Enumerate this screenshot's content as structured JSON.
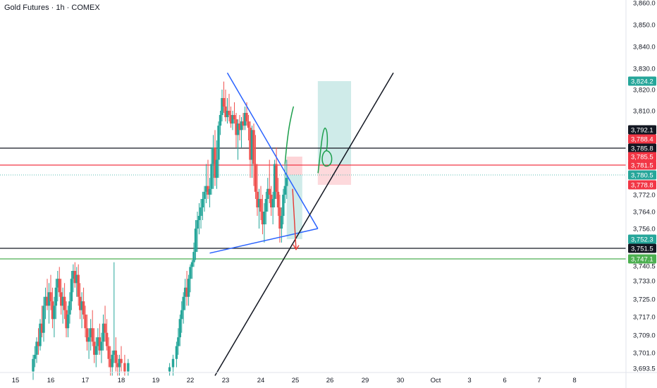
{
  "chart_data": {
    "type": "candlestick",
    "title": "Gold Futures · 1h · COMEX",
    "xlabel": "",
    "ylabel": "",
    "ylim": [
      3690,
      3865
    ],
    "grid": false,
    "colors": {
      "up": "#26a69a",
      "down": "#ef5350",
      "trendline": "#2962ff",
      "level": "#131722",
      "entry": "#f23645",
      "support": "#4caf50",
      "target_zone": "#26a69a",
      "stop_zone": "#f7525f"
    },
    "y_ticks": [
      "3,860.0",
      "3,850.0",
      "3,840.0",
      "3,830.0",
      "3,820.0",
      "3,810.0",
      "3,772.0",
      "3,764.0",
      "3,756.0",
      "3,740.5",
      "3,733.0",
      "3,725.0",
      "3,717.0",
      "3,709.0",
      "3,701.0",
      "3,693.5"
    ],
    "x_ticks": [
      "15",
      "16",
      "17",
      "18",
      "19",
      "22",
      "23",
      "24",
      "25",
      "26",
      "29",
      "30",
      "Oct",
      "3",
      "6",
      "7",
      "8"
    ],
    "price_labels": [
      {
        "text": "3,824.2",
        "value": 3824.2,
        "color": "#26a69a"
      },
      {
        "text": "3,792.1",
        "value": 3792.1,
        "color": "#131722"
      },
      {
        "text": "3,788.4",
        "value": 3788.4,
        "color": "#f23645"
      },
      {
        "text": "3,785.8",
        "value": 3785.8,
        "color": "#131722"
      },
      {
        "text": "3,785.5",
        "value": 3785.5,
        "color": "#f23645"
      },
      {
        "text": "3,781.5",
        "value": 3781.5,
        "color": "#f23645"
      },
      {
        "text": "3,780.5",
        "value": 3780.5,
        "color": "#26a69a"
      },
      {
        "text": "3,778.8",
        "value": 3778.8,
        "color": "#f23645"
      },
      {
        "text": "3,752.3",
        "value": 3752.3,
        "color": "#26a69a"
      },
      {
        "text": "3,751.5",
        "value": 3751.5,
        "color": "#131722"
      },
      {
        "text": "3,747.1",
        "value": 3747.1,
        "color": "#4caf50"
      }
    ],
    "horizontal_levels": [
      {
        "value": 3785.8,
        "color": "#131722"
      },
      {
        "value": 3781.5,
        "color": "#f23645"
      },
      {
        "value": 3751.5,
        "color": "#131722"
      },
      {
        "value": 3747.1,
        "color": "#4caf50"
      }
    ],
    "candles": [
      {
        "x": 0.5,
        "o": 3692,
        "h": 3700,
        "l": 3688,
        "c": 3698
      },
      {
        "x": 0.55,
        "o": 3698,
        "h": 3704,
        "l": 3694,
        "c": 3700
      },
      {
        "x": 0.6,
        "o": 3700,
        "h": 3708,
        "l": 3696,
        "c": 3706
      },
      {
        "x": 0.65,
        "o": 3706,
        "h": 3712,
        "l": 3700,
        "c": 3704
      },
      {
        "x": 0.7,
        "o": 3704,
        "h": 3716,
        "l": 3702,
        "c": 3714
      },
      {
        "x": 0.75,
        "o": 3714,
        "h": 3722,
        "l": 3708,
        "c": 3710
      },
      {
        "x": 0.8,
        "o": 3710,
        "h": 3726,
        "l": 3706,
        "c": 3722
      },
      {
        "x": 0.85,
        "o": 3722,
        "h": 3730,
        "l": 3716,
        "c": 3726
      },
      {
        "x": 0.9,
        "o": 3726,
        "h": 3734,
        "l": 3720,
        "c": 3722
      },
      {
        "x": 0.95,
        "o": 3722,
        "h": 3732,
        "l": 3714,
        "c": 3728
      },
      {
        "x": 1.0,
        "o": 3728,
        "h": 3736,
        "l": 3720,
        "c": 3724
      },
      {
        "x": 1.05,
        "o": 3724,
        "h": 3730,
        "l": 3712,
        "c": 3716
      },
      {
        "x": 1.1,
        "o": 3716,
        "h": 3726,
        "l": 3708,
        "c": 3722
      },
      {
        "x": 1.15,
        "o": 3722,
        "h": 3734,
        "l": 3716,
        "c": 3730
      },
      {
        "x": 1.2,
        "o": 3730,
        "h": 3738,
        "l": 3724,
        "c": 3734
      },
      {
        "x": 1.25,
        "o": 3734,
        "h": 3740,
        "l": 3726,
        "c": 3728
      },
      {
        "x": 1.3,
        "o": 3728,
        "h": 3734,
        "l": 3718,
        "c": 3722
      },
      {
        "x": 1.35,
        "o": 3722,
        "h": 3730,
        "l": 3714,
        "c": 3726
      },
      {
        "x": 1.4,
        "o": 3726,
        "h": 3732,
        "l": 3716,
        "c": 3720
      },
      {
        "x": 1.45,
        "o": 3720,
        "h": 3724,
        "l": 3708,
        "c": 3712
      },
      {
        "x": 1.5,
        "o": 3712,
        "h": 3722,
        "l": 3708,
        "c": 3718
      },
      {
        "x": 1.55,
        "o": 3718,
        "h": 3728,
        "l": 3714,
        "c": 3724
      },
      {
        "x": 1.6,
        "o": 3724,
        "h": 3738,
        "l": 3720,
        "c": 3734
      },
      {
        "x": 1.65,
        "o": 3734,
        "h": 3742,
        "l": 3728,
        "c": 3738
      },
      {
        "x": 1.7,
        "o": 3738,
        "h": 3744,
        "l": 3730,
        "c": 3732
      },
      {
        "x": 1.75,
        "o": 3732,
        "h": 3740,
        "l": 3726,
        "c": 3736
      },
      {
        "x": 1.8,
        "o": 3736,
        "h": 3742,
        "l": 3722,
        "c": 3726
      },
      {
        "x": 1.85,
        "o": 3726,
        "h": 3732,
        "l": 3716,
        "c": 3720
      },
      {
        "x": 1.9,
        "o": 3720,
        "h": 3728,
        "l": 3712,
        "c": 3724
      },
      {
        "x": 1.95,
        "o": 3724,
        "h": 3730,
        "l": 3716,
        "c": 3718
      },
      {
        "x": 2.0,
        "o": 3718,
        "h": 3722,
        "l": 3708,
        "c": 3712
      },
      {
        "x": 2.05,
        "o": 3712,
        "h": 3718,
        "l": 3702,
        "c": 3706
      },
      {
        "x": 2.1,
        "o": 3706,
        "h": 3712,
        "l": 3698,
        "c": 3708
      },
      {
        "x": 2.15,
        "o": 3708,
        "h": 3716,
        "l": 3702,
        "c": 3712
      },
      {
        "x": 2.2,
        "o": 3712,
        "h": 3720,
        "l": 3704,
        "c": 3706
      },
      {
        "x": 2.25,
        "o": 3706,
        "h": 3712,
        "l": 3696,
        "c": 3700
      },
      {
        "x": 2.3,
        "o": 3700,
        "h": 3708,
        "l": 3694,
        "c": 3704
      },
      {
        "x": 2.35,
        "o": 3704,
        "h": 3712,
        "l": 3700,
        "c": 3708
      },
      {
        "x": 2.4,
        "o": 3708,
        "h": 3714,
        "l": 3700,
        "c": 3702
      },
      {
        "x": 2.45,
        "o": 3702,
        "h": 3710,
        "l": 3696,
        "c": 3706
      },
      {
        "x": 2.5,
        "o": 3706,
        "h": 3718,
        "l": 3702,
        "c": 3714
      },
      {
        "x": 2.55,
        "o": 3714,
        "h": 3722,
        "l": 3706,
        "c": 3710
      },
      {
        "x": 2.6,
        "o": 3710,
        "h": 3716,
        "l": 3702,
        "c": 3704
      },
      {
        "x": 2.65,
        "o": 3704,
        "h": 3708,
        "l": 3694,
        "c": 3698
      },
      {
        "x": 2.7,
        "o": 3698,
        "h": 3704,
        "l": 3690,
        "c": 3694
      },
      {
        "x": 2.75,
        "o": 3694,
        "h": 3702,
        "l": 3690,
        "c": 3700
      },
      {
        "x": 2.8,
        "o": 3700,
        "h": 3744,
        "l": 3696,
        "c": 3702
      },
      {
        "x": 2.85,
        "o": 3702,
        "h": 3708,
        "l": 3692,
        "c": 3696
      },
      {
        "x": 2.9,
        "o": 3696,
        "h": 3700,
        "l": 3690,
        "c": 3694
      },
      {
        "x": 2.95,
        "o": 3694,
        "h": 3700,
        "l": 3690,
        "c": 3698
      },
      {
        "x": 3.0,
        "o": 3698,
        "h": 3704,
        "l": 3692,
        "c": 3696
      },
      {
        "x": 3.1,
        "o": 3696,
        "h": 3700,
        "l": 3690,
        "c": 3692
      },
      {
        "x": 3.2,
        "o": 3692,
        "h": 3698,
        "l": 3690,
        "c": 3696
      },
      {
        "x": 4.4,
        "o": 3692,
        "h": 3696,
        "l": 3690,
        "c": 3694
      },
      {
        "x": 4.5,
        "o": 3694,
        "h": 3700,
        "l": 3690,
        "c": 3698
      },
      {
        "x": 4.6,
        "o": 3698,
        "h": 3706,
        "l": 3694,
        "c": 3704
      },
      {
        "x": 4.65,
        "o": 3704,
        "h": 3712,
        "l": 3700,
        "c": 3708
      },
      {
        "x": 4.7,
        "o": 3708,
        "h": 3718,
        "l": 3704,
        "c": 3716
      },
      {
        "x": 4.75,
        "o": 3716,
        "h": 3724,
        "l": 3710,
        "c": 3720
      },
      {
        "x": 4.8,
        "o": 3720,
        "h": 3728,
        "l": 3714,
        "c": 3726
      },
      {
        "x": 4.85,
        "o": 3726,
        "h": 3734,
        "l": 3720,
        "c": 3730
      },
      {
        "x": 4.9,
        "o": 3730,
        "h": 3738,
        "l": 3722,
        "c": 3726
      },
      {
        "x": 4.95,
        "o": 3726,
        "h": 3736,
        "l": 3722,
        "c": 3734
      },
      {
        "x": 5.0,
        "o": 3734,
        "h": 3742,
        "l": 3728,
        "c": 3740
      },
      {
        "x": 5.05,
        "o": 3740,
        "h": 3746,
        "l": 3734,
        "c": 3744
      },
      {
        "x": 5.1,
        "o": 3744,
        "h": 3752,
        "l": 3740,
        "c": 3750
      },
      {
        "x": 5.15,
        "o": 3750,
        "h": 3760,
        "l": 3746,
        "c": 3756
      },
      {
        "x": 5.2,
        "o": 3756,
        "h": 3764,
        "l": 3750,
        "c": 3760
      },
      {
        "x": 5.25,
        "o": 3760,
        "h": 3768,
        "l": 3754,
        "c": 3762
      },
      {
        "x": 5.3,
        "o": 3762,
        "h": 3770,
        "l": 3756,
        "c": 3766
      },
      {
        "x": 5.35,
        "o": 3766,
        "h": 3774,
        "l": 3760,
        "c": 3770
      },
      {
        "x": 5.4,
        "o": 3770,
        "h": 3778,
        "l": 3764,
        "c": 3774
      },
      {
        "x": 5.45,
        "o": 3774,
        "h": 3782,
        "l": 3768,
        "c": 3778
      },
      {
        "x": 5.5,
        "o": 3778,
        "h": 3784,
        "l": 3770,
        "c": 3772
      },
      {
        "x": 5.55,
        "o": 3772,
        "h": 3780,
        "l": 3766,
        "c": 3776
      },
      {
        "x": 5.6,
        "o": 3776,
        "h": 3786,
        "l": 3772,
        "c": 3782
      },
      {
        "x": 5.65,
        "o": 3782,
        "h": 3790,
        "l": 3776,
        "c": 3786
      },
      {
        "x": 5.7,
        "o": 3786,
        "h": 3792,
        "l": 3778,
        "c": 3780
      },
      {
        "x": 5.75,
        "o": 3780,
        "h": 3788,
        "l": 3776,
        "c": 3784
      },
      {
        "x": 5.8,
        "o": 3784,
        "h": 3800,
        "l": 3780,
        "c": 3796
      },
      {
        "x": 5.85,
        "o": 3796,
        "h": 3810,
        "l": 3790,
        "c": 3806
      },
      {
        "x": 5.9,
        "o": 3806,
        "h": 3820,
        "l": 3800,
        "c": 3816
      },
      {
        "x": 5.95,
        "o": 3816,
        "h": 3824,
        "l": 3808,
        "c": 3812
      },
      {
        "x": 6.0,
        "o": 3812,
        "h": 3820,
        "l": 3800,
        "c": 3804
      },
      {
        "x": 6.05,
        "o": 3804,
        "h": 3816,
        "l": 3798,
        "c": 3810
      },
      {
        "x": 6.1,
        "o": 3810,
        "h": 3818,
        "l": 3800,
        "c": 3806
      },
      {
        "x": 6.15,
        "o": 3806,
        "h": 3812,
        "l": 3794,
        "c": 3798
      },
      {
        "x": 6.2,
        "o": 3798,
        "h": 3810,
        "l": 3792,
        "c": 3806
      },
      {
        "x": 6.25,
        "o": 3806,
        "h": 3814,
        "l": 3798,
        "c": 3802
      },
      {
        "x": 6.3,
        "o": 3802,
        "h": 3808,
        "l": 3786,
        "c": 3790
      },
      {
        "x": 6.35,
        "o": 3790,
        "h": 3802,
        "l": 3784,
        "c": 3798
      },
      {
        "x": 6.4,
        "o": 3798,
        "h": 3806,
        "l": 3788,
        "c": 3792
      },
      {
        "x": 6.45,
        "o": 3792,
        "h": 3804,
        "l": 3786,
        "c": 3800
      },
      {
        "x": 6.5,
        "o": 3800,
        "h": 3808,
        "l": 3792,
        "c": 3796
      },
      {
        "x": 6.55,
        "o": 3796,
        "h": 3812,
        "l": 3792,
        "c": 3808
      },
      {
        "x": 6.6,
        "o": 3808,
        "h": 3814,
        "l": 3796,
        "c": 3800
      },
      {
        "x": 6.65,
        "o": 3800,
        "h": 3806,
        "l": 3788,
        "c": 3794
      },
      {
        "x": 6.7,
        "o": 3794,
        "h": 3800,
        "l": 3780,
        "c": 3784
      },
      {
        "x": 6.75,
        "o": 3784,
        "h": 3796,
        "l": 3780,
        "c": 3792
      },
      {
        "x": 6.8,
        "o": 3792,
        "h": 3798,
        "l": 3778,
        "c": 3782
      },
      {
        "x": 6.85,
        "o": 3782,
        "h": 3790,
        "l": 3770,
        "c": 3774
      },
      {
        "x": 6.9,
        "o": 3774,
        "h": 3782,
        "l": 3762,
        "c": 3766
      },
      {
        "x": 6.95,
        "o": 3766,
        "h": 3776,
        "l": 3756,
        "c": 3770
      },
      {
        "x": 7.0,
        "o": 3770,
        "h": 3778,
        "l": 3760,
        "c": 3764
      },
      {
        "x": 7.05,
        "o": 3764,
        "h": 3772,
        "l": 3754,
        "c": 3758
      },
      {
        "x": 7.1,
        "o": 3758,
        "h": 3768,
        "l": 3752,
        "c": 3764
      },
      {
        "x": 7.15,
        "o": 3764,
        "h": 3774,
        "l": 3758,
        "c": 3770
      },
      {
        "x": 7.2,
        "o": 3770,
        "h": 3780,
        "l": 3764,
        "c": 3776
      },
      {
        "x": 7.25,
        "o": 3776,
        "h": 3784,
        "l": 3768,
        "c": 3772
      },
      {
        "x": 7.3,
        "o": 3772,
        "h": 3778,
        "l": 3762,
        "c": 3766
      },
      {
        "x": 7.35,
        "o": 3766,
        "h": 3774,
        "l": 3758,
        "c": 3770
      },
      {
        "x": 7.4,
        "o": 3770,
        "h": 3784,
        "l": 3766,
        "c": 3782
      },
      {
        "x": 7.45,
        "o": 3782,
        "h": 3786,
        "l": 3770,
        "c": 3774
      },
      {
        "x": 7.5,
        "o": 3774,
        "h": 3780,
        "l": 3762,
        "c": 3766
      },
      {
        "x": 7.55,
        "o": 3766,
        "h": 3772,
        "l": 3752,
        "c": 3756
      },
      {
        "x": 7.6,
        "o": 3756,
        "h": 3766,
        "l": 3752,
        "c": 3762
      },
      {
        "x": 7.65,
        "o": 3762,
        "h": 3776,
        "l": 3758,
        "c": 3772
      },
      {
        "x": 7.7,
        "o": 3772,
        "h": 3782,
        "l": 3768,
        "c": 3778
      },
      {
        "x": 7.75,
        "o": 3778,
        "h": 3784,
        "l": 3770,
        "c": 3780
      }
    ],
    "drawings": {
      "triangle_upper": [
        [
          6.05,
          3828
        ],
        [
          8.65,
          3756
        ]
      ],
      "triangle_lower": [
        [
          5.55,
          3749.5
        ],
        [
          8.65,
          3756
        ]
      ],
      "black_trend": [
        [
          5.7,
          3690
        ],
        [
          10.8,
          3828
        ]
      ],
      "long_target_box": {
        "x": [
          7.75,
          8.2
        ],
        "y_top": 3780.5,
        "y_bottom": 3752.3,
        "color": "#26a69a"
      },
      "long_stop_box": {
        "x": [
          7.75,
          8.2
        ],
        "y_top": 3785.5,
        "y_bottom": 3780.5,
        "color": "#f7525f"
      },
      "future_target_box": {
        "x": [
          8.65,
          9.6
        ],
        "y_top": 3824.2,
        "y_bottom": 3781.5,
        "color": "#26a69a"
      },
      "future_stop_box": {
        "x": [
          8.65,
          9.6
        ],
        "y_top": 3781.5,
        "y_bottom": 3778.8,
        "color": "#f7525f"
      },
      "red_arrow": [
        [
          7.92,
          3776
        ],
        [
          8.02,
          3751
        ]
      ],
      "green_swoosh": [
        [
          7.7,
          3782
        ],
        [
          7.85,
          3800
        ],
        [
          7.95,
          3812
        ]
      ],
      "green_loop": {
        "cx": 8.9,
        "cy": 3785,
        "note": "hand drawn"
      }
    }
  }
}
